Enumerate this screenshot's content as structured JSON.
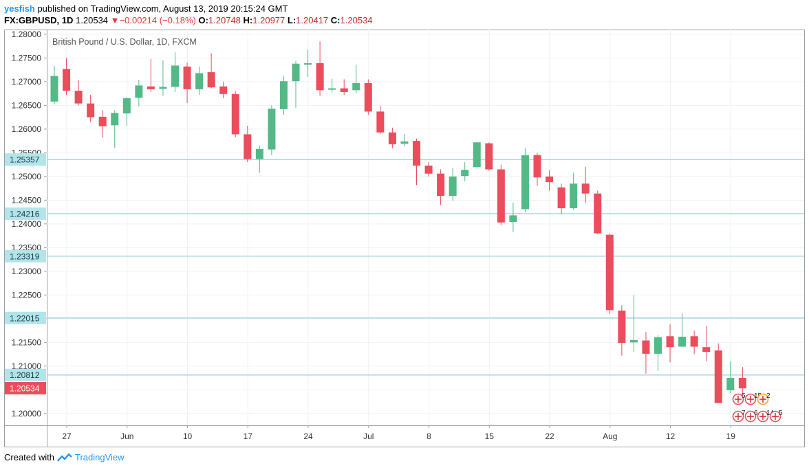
{
  "header": {
    "user": "yesfish",
    "published": "published on TradingView.com, August 13, 2019 20:15:24 GMT",
    "symbol": "FX:GBPUSD, 1D",
    "last": "1.20534",
    "change": "−0.00214 (−0.18%)",
    "o_label": "O:",
    "o": "1.20748",
    "h_label": "H:",
    "h": "1.20977",
    "l_label": "L:",
    "l": "1.20417",
    "c_label": "C:",
    "c": "1.20534"
  },
  "footer": {
    "created": "Created with",
    "brand": "TradingView"
  },
  "colors": {
    "up": "#53b987",
    "down": "#eb4d5c",
    "level": "#a0d6dc",
    "level_label": "#b2e5ea",
    "last_label": "#eb4d5c",
    "grid": "#eef2f5"
  },
  "chart_data": {
    "type": "candlestick",
    "title": "British Pound / U.S. Dollar, 1D, FXCM",
    "ylim": [
      1.1975,
      1.281
    ],
    "y_ticks": [
      "1.28000",
      "1.27500",
      "1.27000",
      "1.26500",
      "1.26000",
      "1.25500",
      "1.25000",
      "1.24500",
      "1.24000",
      "1.23500",
      "1.23000",
      "1.22500",
      "1.22000",
      "1.21500",
      "1.21000",
      "1.20500",
      "1.20000"
    ],
    "x_labels": [
      "27",
      "Jun",
      "10",
      "17",
      "24",
      "Jul",
      "8",
      "15",
      "22",
      "Aug",
      "12",
      "19"
    ],
    "levels": [
      {
        "value": 1.25357,
        "label": "1.25357"
      },
      {
        "value": 1.24216,
        "label": "1.24216"
      },
      {
        "value": 1.23319,
        "label": "1.23319"
      },
      {
        "value": 1.22015,
        "label": "1.22015"
      },
      {
        "value": 1.20812,
        "label": "1.20812"
      }
    ],
    "last_price": {
      "value": 1.20534,
      "label": "1.20534"
    },
    "candles": [
      {
        "o": 1.2658,
        "h": 1.2733,
        "l": 1.2652,
        "c": 1.2712
      },
      {
        "o": 1.2727,
        "h": 1.275,
        "l": 1.2672,
        "c": 1.2681
      },
      {
        "o": 1.2681,
        "h": 1.2703,
        "l": 1.265,
        "c": 1.2654
      },
      {
        "o": 1.2654,
        "h": 1.2672,
        "l": 1.2615,
        "c": 1.2625
      },
      {
        "o": 1.2626,
        "h": 1.264,
        "l": 1.2582,
        "c": 1.2606
      },
      {
        "o": 1.2608,
        "h": 1.264,
        "l": 1.256,
        "c": 1.2634
      },
      {
        "o": 1.2633,
        "h": 1.2668,
        "l": 1.2607,
        "c": 1.2665
      },
      {
        "o": 1.2666,
        "h": 1.2704,
        "l": 1.2648,
        "c": 1.2692
      },
      {
        "o": 1.269,
        "h": 1.2748,
        "l": 1.2678,
        "c": 1.2684
      },
      {
        "o": 1.2685,
        "h": 1.2745,
        "l": 1.267,
        "c": 1.2689
      },
      {
        "o": 1.2689,
        "h": 1.2762,
        "l": 1.2678,
        "c": 1.2734
      },
      {
        "o": 1.2732,
        "h": 1.274,
        "l": 1.2655,
        "c": 1.2684
      },
      {
        "o": 1.2684,
        "h": 1.2732,
        "l": 1.2672,
        "c": 1.2718
      },
      {
        "o": 1.272,
        "h": 1.276,
        "l": 1.2686,
        "c": 1.2688
      },
      {
        "o": 1.269,
        "h": 1.27,
        "l": 1.2665,
        "c": 1.2674
      },
      {
        "o": 1.2674,
        "h": 1.268,
        "l": 1.2583,
        "c": 1.2589
      },
      {
        "o": 1.2589,
        "h": 1.2607,
        "l": 1.253,
        "c": 1.2537
      },
      {
        "o": 1.2537,
        "h": 1.2565,
        "l": 1.2508,
        "c": 1.2558
      },
      {
        "o": 1.2557,
        "h": 1.265,
        "l": 1.2545,
        "c": 1.2643
      },
      {
        "o": 1.2642,
        "h": 1.2712,
        "l": 1.263,
        "c": 1.2701
      },
      {
        "o": 1.2701,
        "h": 1.2744,
        "l": 1.2645,
        "c": 1.2738
      },
      {
        "o": 1.2736,
        "h": 1.2768,
        "l": 1.271,
        "c": 1.2739
      },
      {
        "o": 1.2739,
        "h": 1.2785,
        "l": 1.267,
        "c": 1.2682
      },
      {
        "o": 1.2683,
        "h": 1.2706,
        "l": 1.2677,
        "c": 1.2686
      },
      {
        "o": 1.2686,
        "h": 1.2705,
        "l": 1.2672,
        "c": 1.2678
      },
      {
        "o": 1.2682,
        "h": 1.2736,
        "l": 1.2676,
        "c": 1.2697
      },
      {
        "o": 1.2697,
        "h": 1.2705,
        "l": 1.263,
        "c": 1.2637
      },
      {
        "o": 1.2637,
        "h": 1.2649,
        "l": 1.259,
        "c": 1.2593
      },
      {
        "o": 1.2593,
        "h": 1.2603,
        "l": 1.256,
        "c": 1.2568
      },
      {
        "o": 1.2569,
        "h": 1.259,
        "l": 1.2563,
        "c": 1.2574
      },
      {
        "o": 1.2575,
        "h": 1.258,
        "l": 1.2482,
        "c": 1.2523
      },
      {
        "o": 1.2523,
        "h": 1.253,
        "l": 1.25,
        "c": 1.2506
      },
      {
        "o": 1.2506,
        "h": 1.2515,
        "l": 1.244,
        "c": 1.2459
      },
      {
        "o": 1.2459,
        "h": 1.2518,
        "l": 1.2449,
        "c": 1.25
      },
      {
        "o": 1.2501,
        "h": 1.253,
        "l": 1.249,
        "c": 1.2514
      },
      {
        "o": 1.252,
        "h": 1.2572,
        "l": 1.2518,
        "c": 1.2572
      },
      {
        "o": 1.257,
        "h": 1.2572,
        "l": 1.2512,
        "c": 1.2515
      },
      {
        "o": 1.2515,
        "h": 1.2525,
        "l": 1.2397,
        "c": 1.2403
      },
      {
        "o": 1.2404,
        "h": 1.2445,
        "l": 1.2383,
        "c": 1.2418
      },
      {
        "o": 1.2431,
        "h": 1.256,
        "l": 1.2425,
        "c": 1.2545
      },
      {
        "o": 1.2545,
        "h": 1.255,
        "l": 1.248,
        "c": 1.2498
      },
      {
        "o": 1.25,
        "h": 1.2513,
        "l": 1.247,
        "c": 1.2488
      },
      {
        "o": 1.2477,
        "h": 1.2485,
        "l": 1.2421,
        "c": 1.2433
      },
      {
        "o": 1.2433,
        "h": 1.2508,
        "l": 1.243,
        "c": 1.2485
      },
      {
        "o": 1.2485,
        "h": 1.252,
        "l": 1.2444,
        "c": 1.2464
      },
      {
        "o": 1.2464,
        "h": 1.247,
        "l": 1.2378,
        "c": 1.238
      },
      {
        "o": 1.2377,
        "h": 1.238,
        "l": 1.221,
        "c": 1.2218
      },
      {
        "o": 1.2217,
        "h": 1.2228,
        "l": 1.2122,
        "c": 1.2149
      },
      {
        "o": 1.215,
        "h": 1.225,
        "l": 1.213,
        "c": 1.2155
      },
      {
        "o": 1.2154,
        "h": 1.2172,
        "l": 1.2084,
        "c": 1.2126
      },
      {
        "o": 1.2126,
        "h": 1.2165,
        "l": 1.209,
        "c": 1.2161
      },
      {
        "o": 1.2163,
        "h": 1.2188,
        "l": 1.2108,
        "c": 1.214
      },
      {
        "o": 1.2141,
        "h": 1.2212,
        "l": 1.214,
        "c": 1.2162
      },
      {
        "o": 1.2163,
        "h": 1.2175,
        "l": 1.2125,
        "c": 1.2141
      },
      {
        "o": 1.214,
        "h": 1.2185,
        "l": 1.211,
        "c": 1.213
      },
      {
        "o": 1.2133,
        "h": 1.2148,
        "l": 1.2022,
        "c": 1.2022
      },
      {
        "o": 1.2049,
        "h": 1.211,
        "l": 1.2043,
        "c": 1.2075
      },
      {
        "o": 1.2075,
        "h": 1.2098,
        "l": 1.2042,
        "c": 1.2053
      }
    ],
    "event_badges_top": [
      "5",
      "15",
      "2"
    ],
    "event_badges_bottom": [
      "7",
      "6",
      "14",
      "5"
    ]
  }
}
